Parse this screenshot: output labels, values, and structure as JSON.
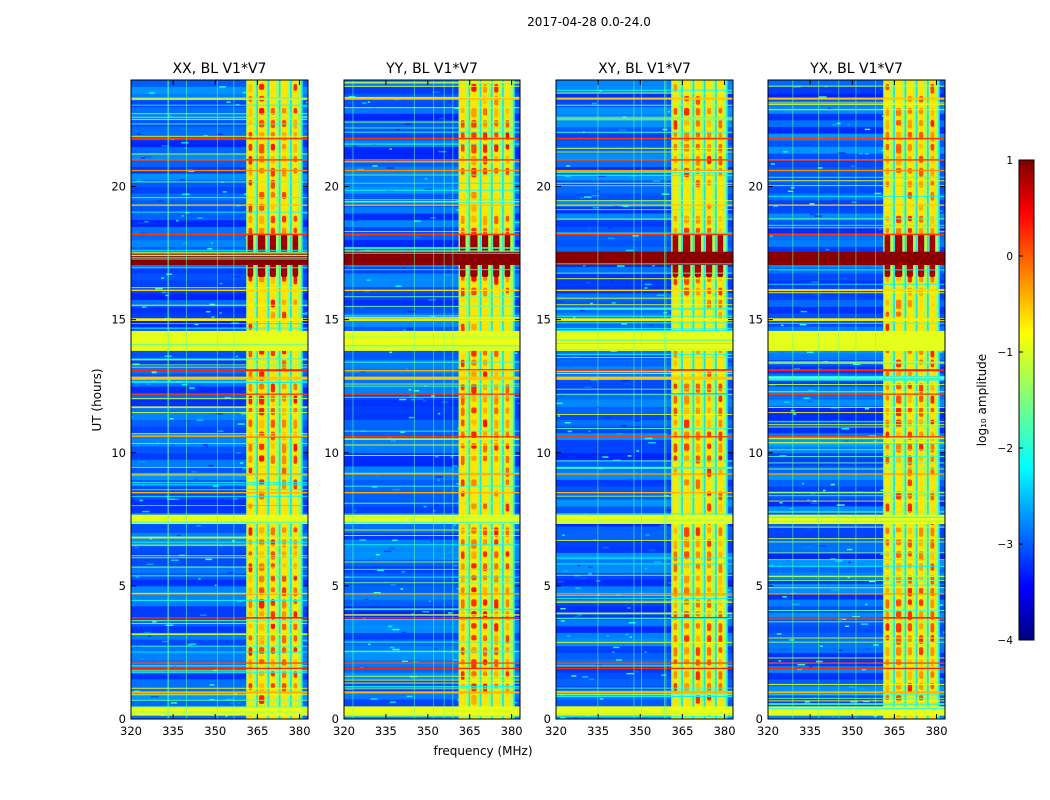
{
  "figure": {
    "suptitle": "2017-04-28 0.0-24.0",
    "xlabel": "frequency (MHz)",
    "ylabel": "UT (hours)"
  },
  "chart_data": {
    "type": "heatmap",
    "title": "2017-04-28 0.0-24.0",
    "xlabel": "frequency (MHz)",
    "ylabel": "UT (hours)",
    "xlim": [
      320,
      383
    ],
    "ylim": [
      0,
      24
    ],
    "xticks": [
      "320",
      "335",
      "350",
      "365",
      "380"
    ],
    "yticks": [
      "0",
      "5",
      "10",
      "15",
      "20"
    ],
    "panels": [
      {
        "title": "XX, BL V1*V7",
        "xlabel": "",
        "ylabel": "UT (hours)",
        "strength": 1.0
      },
      {
        "title": "YY, BL V1*V7",
        "xlabel": "frequency (MHz)",
        "ylabel": "",
        "strength": 1.05
      },
      {
        "title": "XY, BL V1*V7",
        "xlabel": "",
        "ylabel": "",
        "strength": 0.9
      },
      {
        "title": "YX, BL V1*V7",
        "xlabel": "",
        "ylabel": "",
        "strength": 0.95
      }
    ],
    "rfi_band_mhz": [
      361,
      381
    ],
    "rfi_channels_mhz": [
      {
        "center": 362.5,
        "width": 2.0
      },
      {
        "center": 366.5,
        "width": 2.6
      },
      {
        "center": 370.5,
        "width": 2.2
      },
      {
        "center": 374.5,
        "width": 2.2
      },
      {
        "center": 378.5,
        "width": 2.0
      }
    ],
    "horizontal_features": [
      {
        "t": 0.3,
        "dt": 0.35,
        "level": -1.0
      },
      {
        "t": 1.0,
        "dt": 0.08,
        "level": -0.5
      },
      {
        "t": 1.9,
        "dt": 0.05,
        "level": 0.2
      },
      {
        "t": 2.1,
        "dt": 0.05,
        "level": 0.0
      },
      {
        "t": 3.8,
        "dt": 0.06,
        "level": 0.2
      },
      {
        "t": 4.7,
        "dt": 0.05,
        "level": -0.4
      },
      {
        "t": 7.5,
        "dt": 0.35,
        "level": -1.0
      },
      {
        "t": 8.5,
        "dt": 0.05,
        "level": -0.5
      },
      {
        "t": 9.2,
        "dt": 0.05,
        "level": -0.4
      },
      {
        "t": 10.6,
        "dt": 0.05,
        "level": 0.1
      },
      {
        "t": 12.2,
        "dt": 0.05,
        "level": 0.1
      },
      {
        "t": 12.8,
        "dt": 0.12,
        "level": -0.6
      },
      {
        "t": 13.1,
        "dt": 0.08,
        "level": 0.2
      },
      {
        "t": 14.2,
        "dt": 0.75,
        "level": -1.0
      },
      {
        "t": 15.0,
        "dt": 0.1,
        "level": -0.8
      },
      {
        "t": 16.1,
        "dt": 0.05,
        "level": -0.7
      },
      {
        "t": 17.3,
        "dt": 0.5,
        "level": 0.95
      },
      {
        "t": 18.2,
        "dt": 0.06,
        "level": 0.1
      },
      {
        "t": 19.3,
        "dt": 0.05,
        "level": -0.6
      },
      {
        "t": 20.6,
        "dt": 0.05,
        "level": -0.3
      },
      {
        "t": 21.0,
        "dt": 0.06,
        "level": 0.0
      },
      {
        "t": 21.8,
        "dt": 0.06,
        "level": 0.1
      },
      {
        "t": 23.3,
        "dt": 0.08,
        "level": -0.6
      }
    ],
    "colorbar": {
      "label": "log₁₀ amplitude",
      "range": [
        -4,
        1
      ],
      "ticks": [
        "1",
        "0",
        "−1",
        "−2",
        "−3",
        "−4"
      ],
      "colormap": "jet"
    }
  }
}
